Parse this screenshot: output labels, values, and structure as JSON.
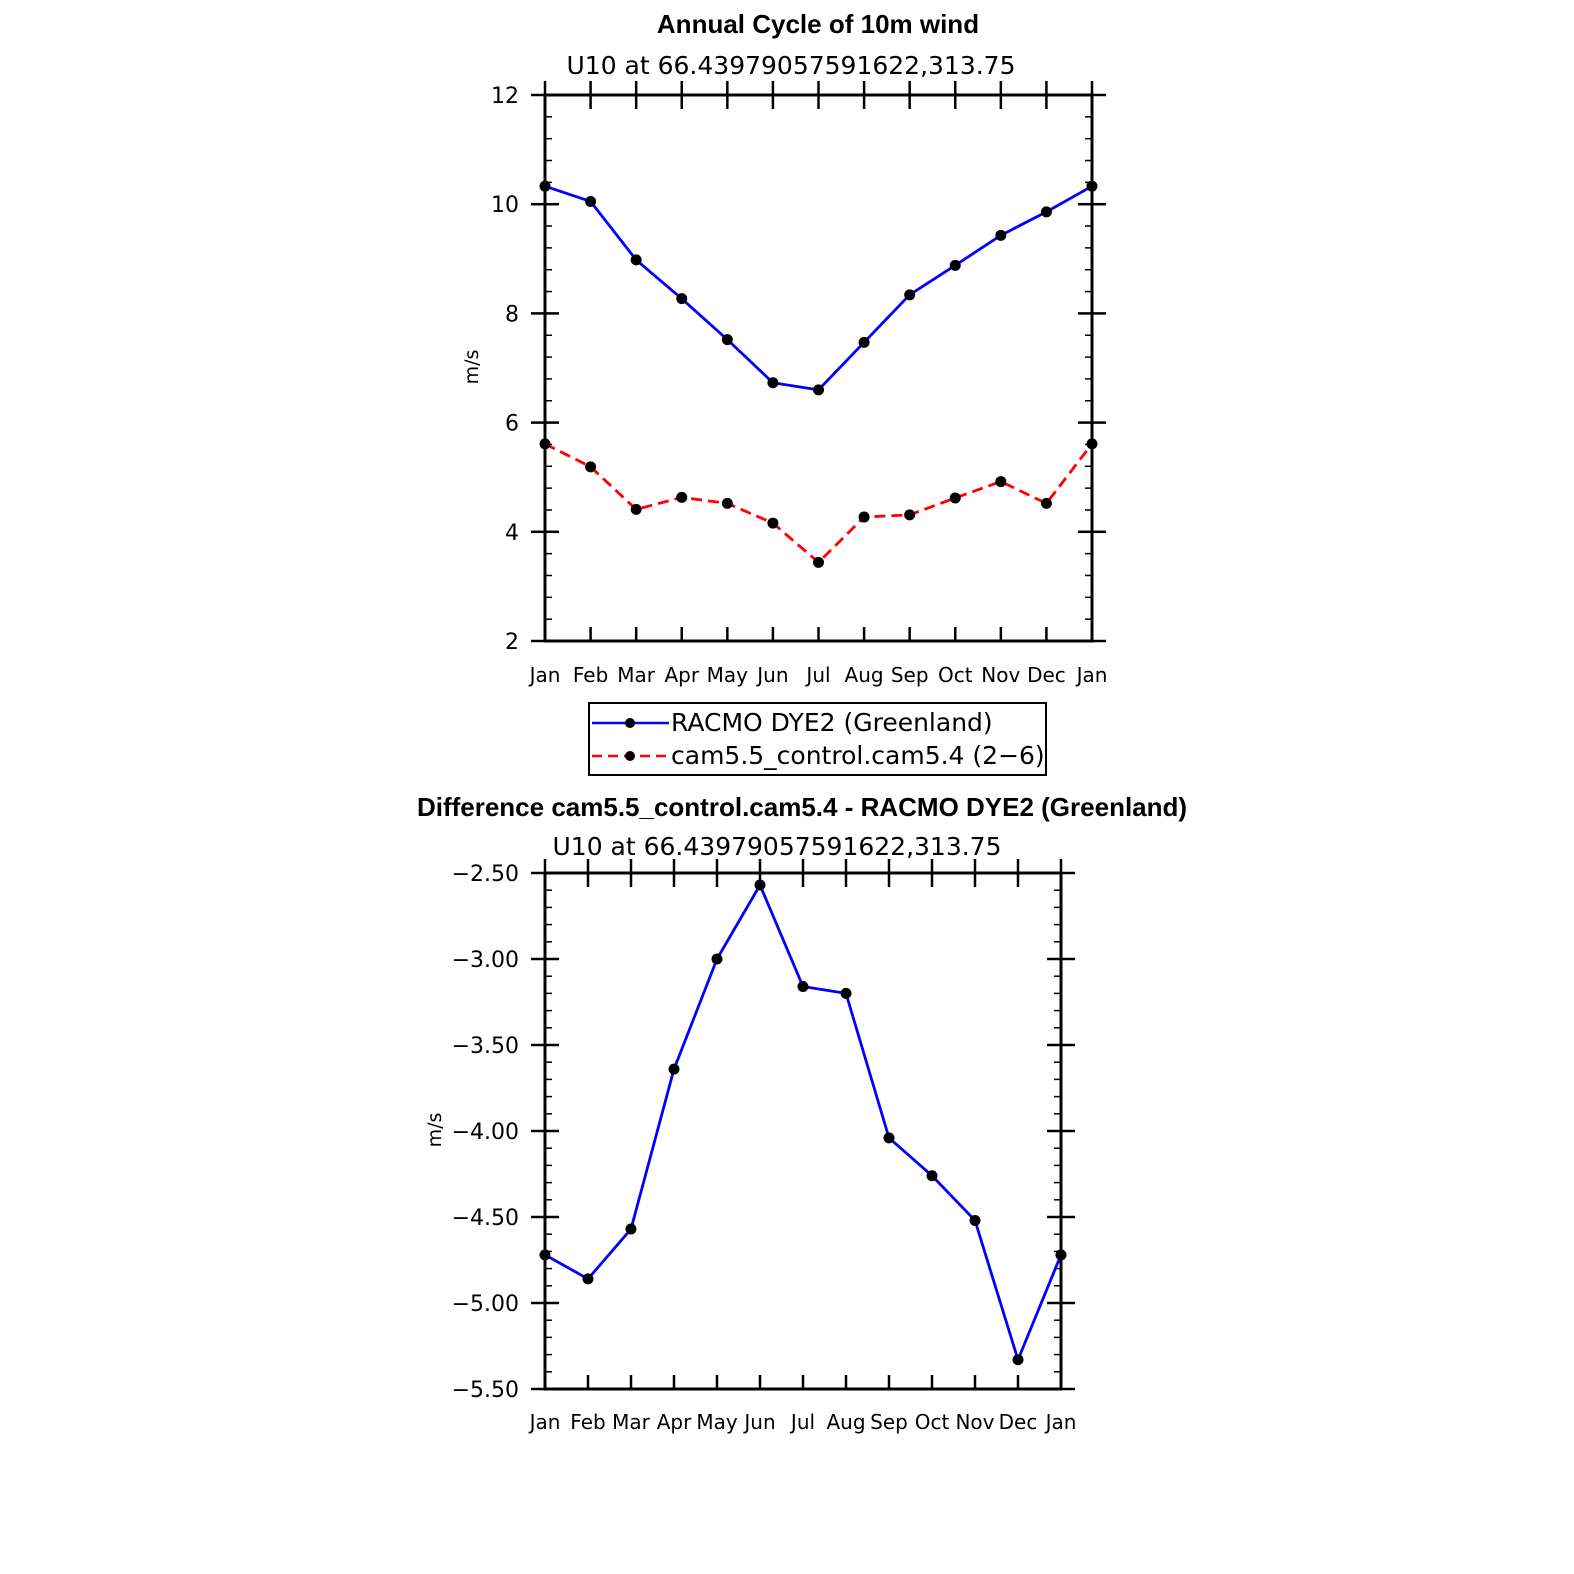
{
  "chart_data": [
    {
      "type": "line",
      "title": "Annual Cycle of 10m wind",
      "subtitle": "U10  at  66.43979057591622,313.75",
      "ylabel": "m/s",
      "xlabel": "",
      "categories": [
        "Jan",
        "Feb",
        "Mar",
        "Apr",
        "May",
        "Jun",
        "Jul",
        "Aug",
        "Sep",
        "Oct",
        "Nov",
        "Dec",
        "Jan"
      ],
      "ylim": [
        2,
        12
      ],
      "yticks": [
        "2",
        "4",
        "6",
        "8",
        "10",
        "12"
      ],
      "series": [
        {
          "name": "RACMO DYE2 (Greenland)",
          "color": "#0000ff",
          "dash": "solid",
          "values": [
            10.33,
            10.05,
            8.98,
            8.27,
            7.52,
            6.73,
            6.6,
            7.47,
            8.34,
            8.88,
            9.43,
            9.86,
            10.33
          ]
        },
        {
          "name": "cam5.5_control.cam5.4 (2−6)",
          "color": "#ff0000",
          "dash": "dashed",
          "values": [
            5.61,
            5.19,
            4.41,
            4.63,
            4.52,
            4.16,
            3.44,
            4.27,
            4.31,
            4.62,
            4.92,
            4.52,
            5.61
          ]
        }
      ]
    },
    {
      "type": "line",
      "title": "Difference cam5.5_control.cam5.4 - RACMO DYE2 (Greenland)",
      "subtitle": "U10  at  66.43979057591622,313.75",
      "ylabel": "m/s",
      "xlabel": "",
      "categories": [
        "Jan",
        "Feb",
        "Mar",
        "Apr",
        "May",
        "Jun",
        "Jul",
        "Aug",
        "Sep",
        "Oct",
        "Nov",
        "Dec",
        "Jan"
      ],
      "ylim": [
        -5.5,
        -2.5
      ],
      "yticks": [
        "−5.50",
        "−5.00",
        "−4.50",
        "−4.00",
        "−3.50",
        "−3.00",
        "−2.50"
      ],
      "series": [
        {
          "name": "Difference",
          "color": "#0000ff",
          "dash": "solid",
          "values": [
            -4.72,
            -4.86,
            -4.57,
            -3.64,
            -3.0,
            -2.57,
            -3.16,
            -3.2,
            -4.04,
            -4.26,
            -4.52,
            -5.33,
            -4.72
          ]
        }
      ]
    }
  ]
}
